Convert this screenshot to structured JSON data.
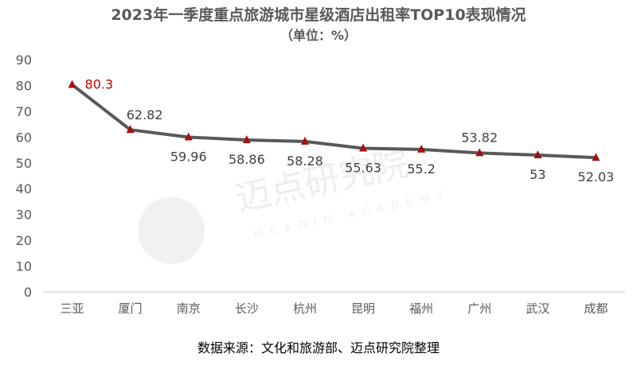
{
  "chart_data": {
    "type": "line",
    "title": "2023年一季度重点旅游城市星级酒店出租率TOP10表现情况",
    "subtitle": "（单位：%）",
    "categories": [
      "三亚",
      "厦门",
      "南京",
      "长沙",
      "杭州",
      "昆明",
      "福州",
      "广州",
      "武汉",
      "成都"
    ],
    "values": [
      80.3,
      62.82,
      59.96,
      58.86,
      58.28,
      55.63,
      55.2,
      53.82,
      53,
      52.03
    ],
    "label_position": [
      "above",
      "above",
      "below",
      "below",
      "below",
      "below",
      "below",
      "above",
      "below",
      "below"
    ],
    "ylim": [
      0,
      90
    ],
    "yticks": [
      0,
      10,
      20,
      30,
      40,
      50,
      60,
      70,
      80,
      90
    ],
    "xlabel": "",
    "ylabel": "",
    "grid": false,
    "legend": "none",
    "line_color": "#595959",
    "marker_color": "#A50F0F",
    "highlight_label_color": "#C00000",
    "source": "数据来源：文化和旅游部、迈点研究院整理",
    "watermark": {
      "cn": "迈点研究院",
      "en": "MEADIN ACADEMY"
    }
  }
}
